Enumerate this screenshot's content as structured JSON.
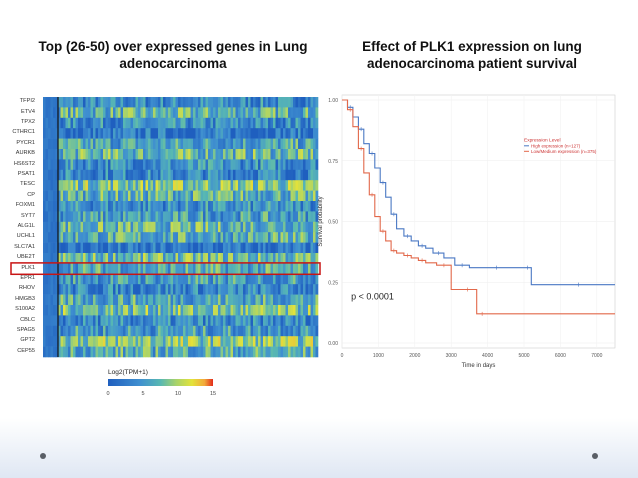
{
  "colors": {
    "heatmap_low": "#1f5fbf",
    "heatmap_mid": "#53b2b8",
    "heatmap_high_mid": "#e0e43a",
    "heatmap_high": "#e22a1a",
    "highlight_box": "#c81414",
    "high_expression": "#4a78c4",
    "low_expression": "#e2684a",
    "legend_title_color": "#cc3333"
  },
  "left_panel": {
    "title": "Top (26-50) over expressed genes in Lung adenocarcinoma",
    "highlighted_gene": "PLK1",
    "colorbar_title": "Log2(TPM+1)",
    "colorbar_ticks": [
      "0",
      "5",
      "10",
      "15"
    ]
  },
  "right_panel": {
    "title": "Effect of PLK1 expression on lung adenocarcinoma patient survival",
    "pvalue": "p < 0.0001",
    "legend": {
      "title": "Expression Level",
      "entries": [
        "High expression (n=127)",
        "Low/Medium expression (n=375)"
      ]
    }
  },
  "chart_data": [
    {
      "type": "heatmap",
      "rows": [
        "TFPI2",
        "ETV4",
        "TPX2",
        "CTHRC1",
        "PYCR1",
        "AURKB",
        "HS6ST2",
        "PSAT1",
        "TESC",
        "CP",
        "FOXM1",
        "SYT7",
        "ALG1L",
        "UCHL1",
        "SLC7A1",
        "UBE2T",
        "PLK1",
        "EPR1",
        "RHOV",
        "HMGB3",
        "S100A2",
        "CBLC",
        "SPAG5",
        "GPT2",
        "CEP55"
      ],
      "colorbar": {
        "title": "Log2(TPM+1)",
        "range": [
          0,
          15
        ]
      }
    },
    {
      "type": "line",
      "xlabel": "Time in days",
      "ylabel": "Survival probability",
      "xlim": [
        0,
        7500
      ],
      "ylim": [
        0,
        1.0
      ],
      "x_ticks": [
        "0",
        "1000",
        "2000",
        "3000",
        "4000",
        "5000",
        "6000",
        "7000"
      ],
      "y_ticks": [
        "0.00",
        "0.25",
        "0.50",
        "0.75",
        "1.00"
      ],
      "series": [
        {
          "name": "High expression (n=127)",
          "x": [
            0,
            150,
            300,
            450,
            600,
            750,
            900,
            1050,
            1200,
            1350,
            1500,
            1700,
            1900,
            2100,
            2300,
            2500,
            2800,
            3100,
            3500,
            4000,
            4500,
            5000,
            5200,
            5500,
            7500
          ],
          "y": [
            1.0,
            0.97,
            0.93,
            0.88,
            0.82,
            0.78,
            0.72,
            0.66,
            0.6,
            0.53,
            0.47,
            0.44,
            0.42,
            0.4,
            0.39,
            0.37,
            0.35,
            0.32,
            0.31,
            0.31,
            0.31,
            0.31,
            0.24,
            0.24,
            0.24
          ]
        },
        {
          "name": "Low/Medium expression (n=375)",
          "x": [
            0,
            150,
            300,
            450,
            600,
            750,
            900,
            1050,
            1200,
            1350,
            1500,
            1700,
            1900,
            2100,
            2300,
            2600,
            3000,
            3300,
            3600,
            3700,
            4000,
            7500
          ],
          "y": [
            1.0,
            0.96,
            0.89,
            0.8,
            0.7,
            0.61,
            0.52,
            0.46,
            0.42,
            0.38,
            0.37,
            0.36,
            0.35,
            0.34,
            0.33,
            0.32,
            0.22,
            0.22,
            0.22,
            0.12,
            0.12,
            0.12
          ]
        }
      ]
    }
  ]
}
